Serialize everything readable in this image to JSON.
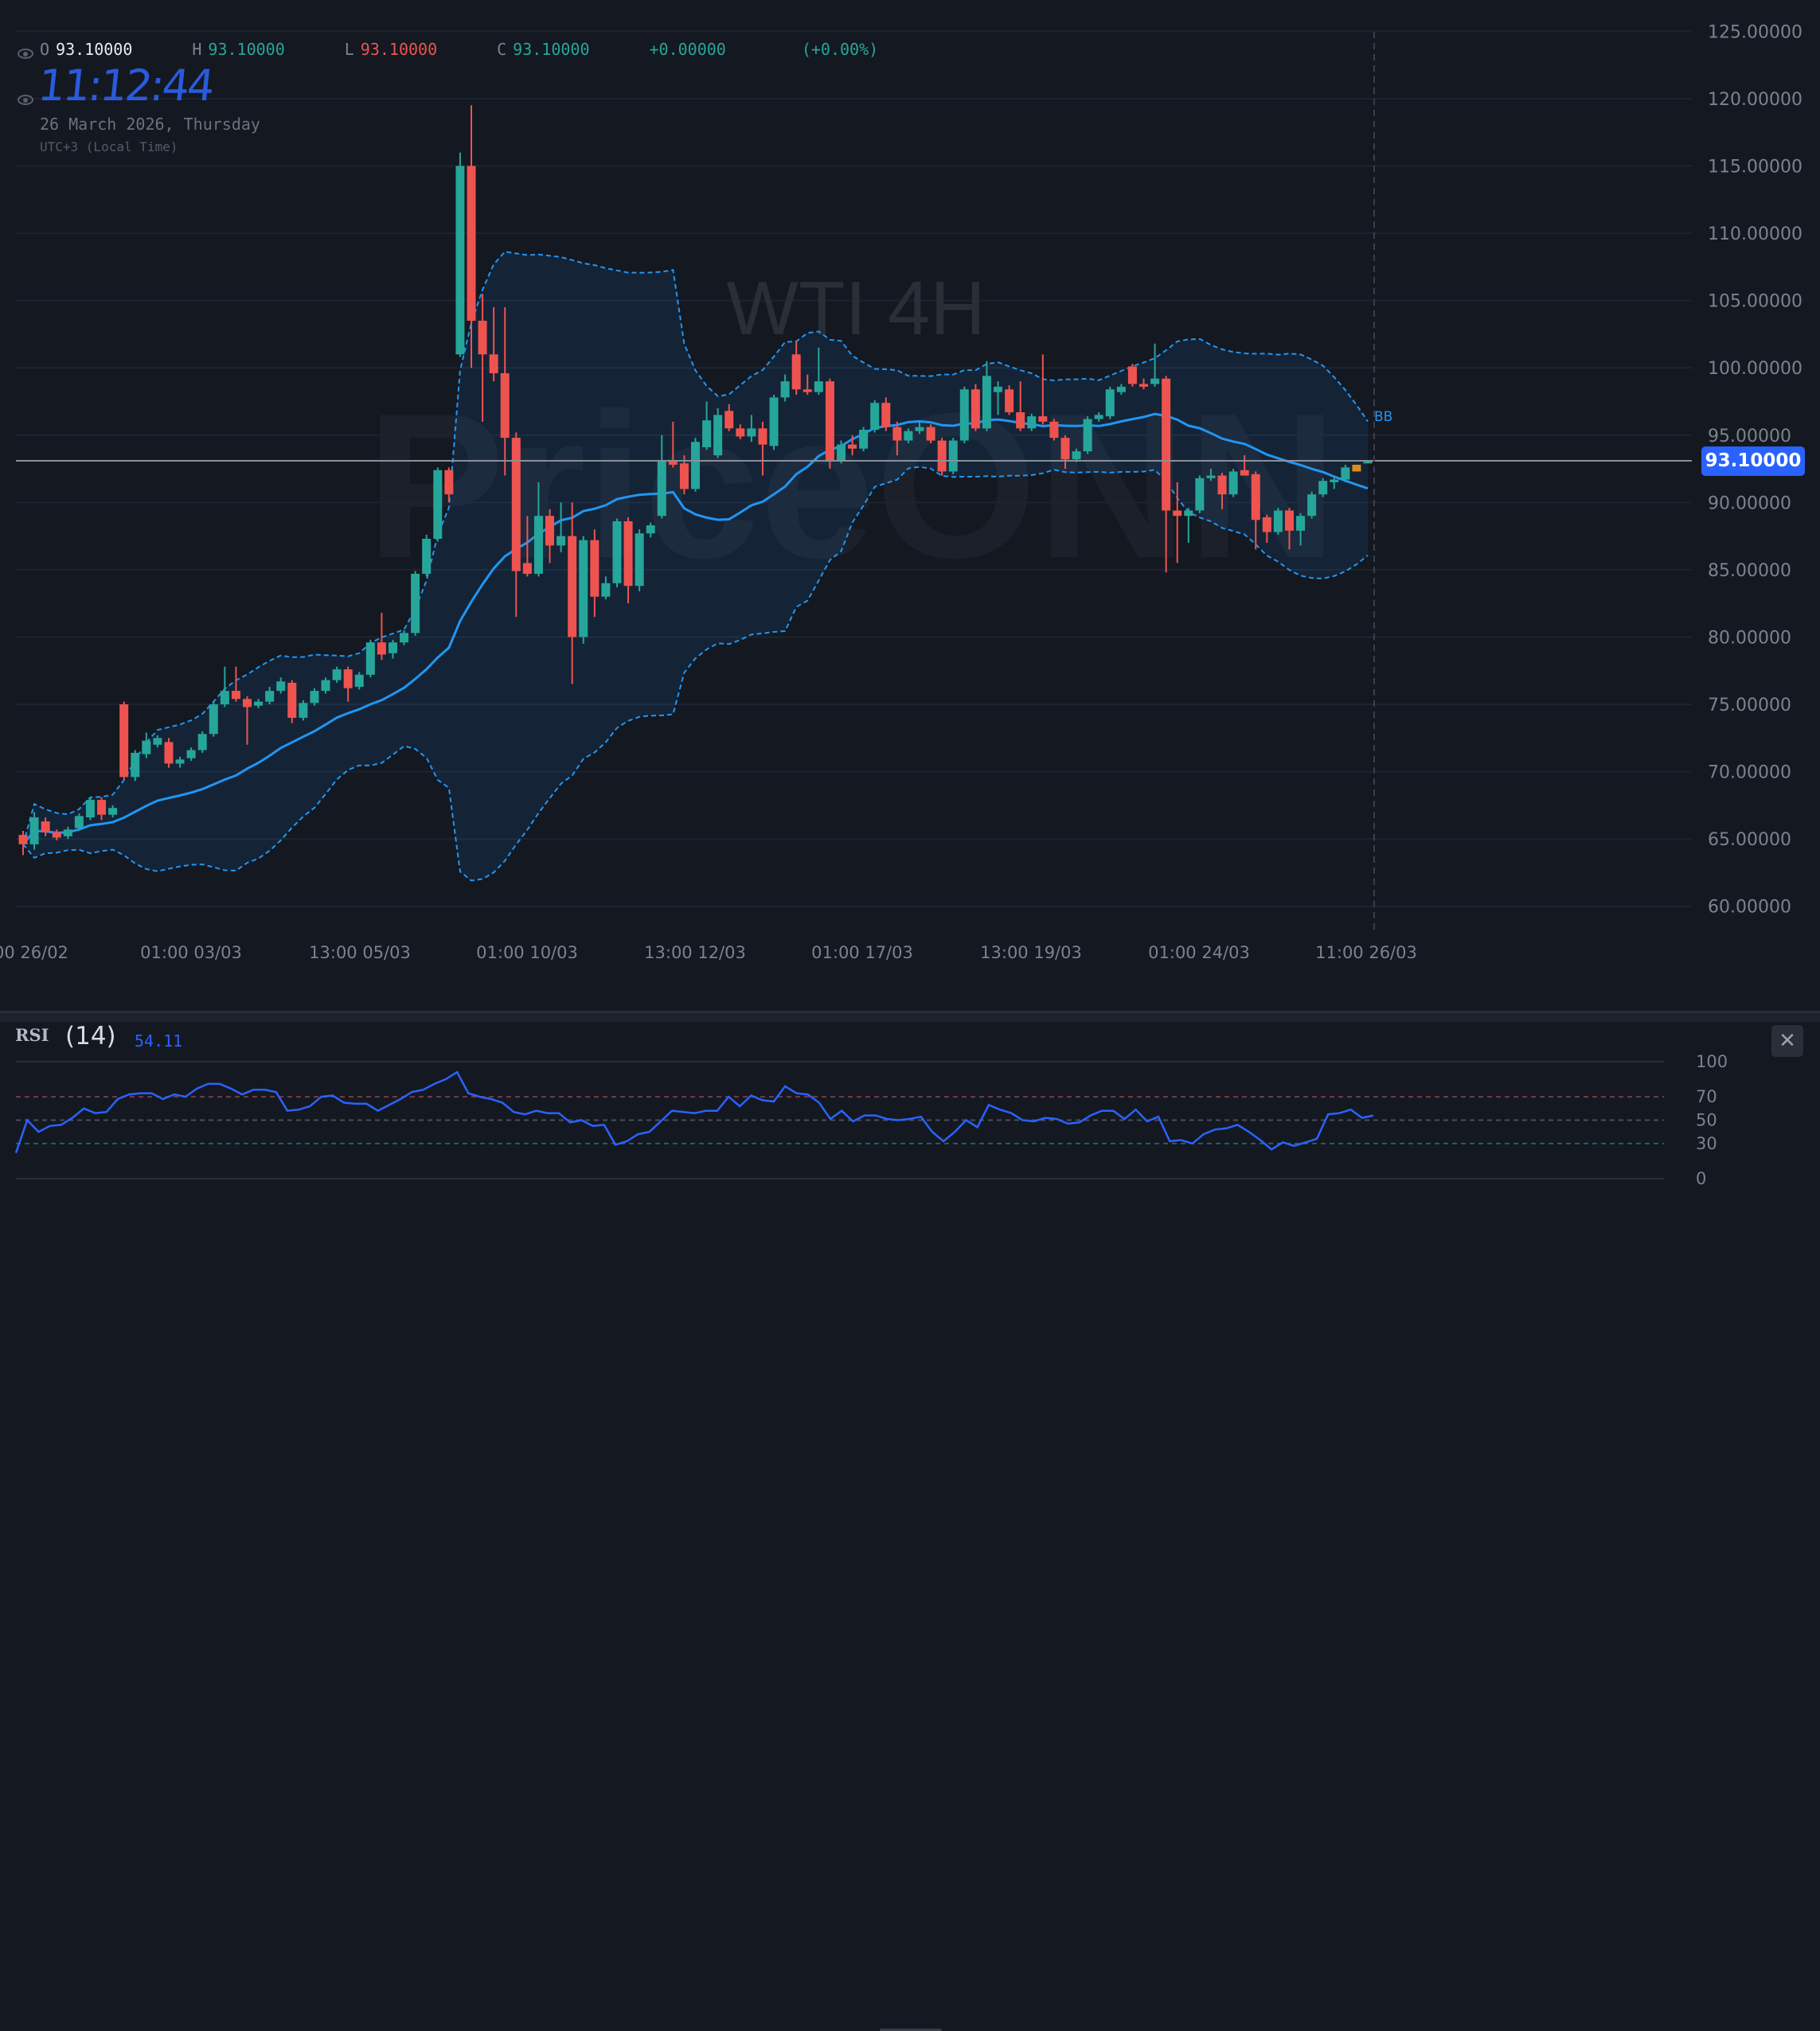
{
  "legend": {
    "open_label": "O",
    "open": "93.10000",
    "high_label": "H",
    "high": "93.10000",
    "low_label": "L",
    "low": "93.10000",
    "close_label": "C",
    "close": "93.10000",
    "change": "+0.00000",
    "change_pct": "(+0.00%)"
  },
  "clock": "11:12:44",
  "date": "26 March 2026, Thursday",
  "timezone": "UTC+3 (Local Time)",
  "watermark": {
    "symbol": "WTI 4H",
    "brand": "PriceONN"
  },
  "indicator_label": "BB",
  "current_price": "93.10000",
  "colors": {
    "up": "#26a69a",
    "down": "#ef5350",
    "bb": "#2196f3",
    "accent": "#2962ff",
    "highlight": "#e08a1e",
    "rsi": "#2a62ff"
  },
  "rsi": {
    "title": "RSI",
    "period": "(14)",
    "value": "54.11",
    "close_icon": "close-icon",
    "levels": [
      "100",
      "70",
      "50",
      "30",
      "0"
    ]
  },
  "chart_data": {
    "type": "candlestick",
    "ylim": [
      60,
      125
    ],
    "y_ticks": [
      "125.00000",
      "120.00000",
      "115.00000",
      "110.00000",
      "105.00000",
      "100.00000",
      "95.00000",
      "90.00000",
      "85.00000",
      "80.00000",
      "75.00000",
      "70.00000",
      "65.00000",
      "60.00000"
    ],
    "x_ticks": [
      "00 26/02",
      "01:00 03/03",
      "13:00 05/03",
      "01:00 10/03",
      "13:00 12/03",
      "01:00 17/03",
      "13:00 19/03",
      "01:00 24/03",
      "11:00 26/03"
    ],
    "grid": true,
    "ohlc": [
      [
        65.3,
        65.6,
        63.8,
        64.6
      ],
      [
        64.6,
        67,
        64.2,
        66.6
      ],
      [
        66.3,
        66.6,
        65.2,
        65.5
      ],
      [
        65.5,
        65.7,
        64.9,
        65.1
      ],
      [
        65.2,
        65.9,
        65,
        65.7
      ],
      [
        65.8,
        66.9,
        65.6,
        66.7
      ],
      [
        66.6,
        68.1,
        66.4,
        67.9
      ],
      [
        67.9,
        68.1,
        66.4,
        66.8
      ],
      [
        66.8,
        67.5,
        66.6,
        67.3
      ],
      [
        75,
        75.2,
        69.4,
        69.6
      ],
      [
        69.6,
        71.6,
        69.3,
        71.4
      ],
      [
        71.3,
        72.9,
        71,
        72.3
      ],
      [
        72,
        72.7,
        71.8,
        72.5
      ],
      [
        72.2,
        72.5,
        70.3,
        70.6
      ],
      [
        70.6,
        71.1,
        70.3,
        70.9
      ],
      [
        71,
        71.8,
        70.8,
        71.6
      ],
      [
        71.6,
        73,
        71.4,
        72.8
      ],
      [
        72.8,
        75.2,
        72.6,
        75
      ],
      [
        75,
        77.8,
        74.8,
        76
      ],
      [
        76,
        77.8,
        75.2,
        75.4
      ],
      [
        75.4,
        75.6,
        72,
        74.8
      ],
      [
        74.9,
        75.4,
        74.7,
        75.2
      ],
      [
        75.2,
        76.3,
        75,
        76
      ],
      [
        76,
        77,
        75.8,
        76.7
      ],
      [
        76.6,
        76.8,
        73.6,
        74
      ],
      [
        74,
        75.3,
        73.8,
        75.1
      ],
      [
        75.1,
        76.2,
        74.9,
        76
      ],
      [
        76,
        77,
        75.8,
        76.8
      ],
      [
        76.8,
        77.8,
        76.6,
        77.6
      ],
      [
        77.6,
        77.8,
        75.2,
        76.2
      ],
      [
        76.3,
        77.4,
        76.1,
        77.2
      ],
      [
        77.2,
        79.8,
        77,
        79.6
      ],
      [
        79.6,
        81.8,
        78.3,
        78.7
      ],
      [
        78.8,
        79.8,
        78.4,
        79.6
      ],
      [
        79.6,
        80.5,
        79.4,
        80.3
      ],
      [
        80.3,
        84.9,
        80.1,
        84.7
      ],
      [
        84.7,
        87.6,
        84.5,
        87.3
      ],
      [
        87.3,
        92.6,
        87.1,
        92.4
      ],
      [
        92.4,
        92.6,
        90,
        90.6
      ],
      [
        101,
        116,
        100.8,
        115
      ],
      [
        115,
        119.5,
        100,
        103.5
      ],
      [
        103.5,
        105.5,
        96,
        101
      ],
      [
        101,
        104.5,
        99,
        99.6
      ],
      [
        99.6,
        104.5,
        92,
        94.8
      ],
      [
        94.8,
        95.2,
        81.5,
        84.9
      ],
      [
        85.5,
        89,
        84.5,
        84.7
      ],
      [
        84.7,
        91.5,
        84.5,
        89
      ],
      [
        89,
        89.5,
        85.5,
        86.8
      ],
      [
        86.8,
        90,
        86.3,
        87.5
      ],
      [
        87.5,
        90,
        76.5,
        80
      ],
      [
        80,
        87.5,
        79.5,
        87.2
      ],
      [
        87.2,
        88,
        81.5,
        83
      ],
      [
        83,
        84.5,
        82.8,
        84
      ],
      [
        84,
        88.8,
        83.7,
        88.6
      ],
      [
        88.6,
        88.9,
        82.5,
        83.8
      ],
      [
        83.8,
        88,
        83.4,
        87.7
      ],
      [
        87.7,
        88.5,
        87.4,
        88.3
      ],
      [
        89,
        95,
        88.8,
        93.1
      ],
      [
        93.1,
        96,
        92.6,
        92.8
      ],
      [
        92.9,
        93.5,
        90.6,
        91
      ],
      [
        91,
        94.8,
        90.8,
        94.5
      ],
      [
        94.1,
        97.5,
        93.9,
        96.1
      ],
      [
        93.5,
        97,
        93.3,
        96.5
      ],
      [
        96.8,
        97.3,
        95.3,
        95.5
      ],
      [
        95.5,
        95.8,
        94.7,
        94.9
      ],
      [
        94.9,
        96.5,
        94.5,
        95.5
      ],
      [
        95.5,
        96,
        92,
        94.3
      ],
      [
        94.2,
        98,
        93.9,
        97.8
      ],
      [
        97.8,
        99.5,
        97.5,
        99
      ],
      [
        101,
        102,
        98,
        98.4
      ],
      [
        98.4,
        99.5,
        98,
        98.2
      ],
      [
        98.2,
        101.5,
        98,
        99
      ],
      [
        99,
        99.2,
        92.5,
        93.1
      ],
      [
        93.1,
        94.6,
        92.9,
        94.3
      ],
      [
        94.3,
        95,
        93.5,
        94
      ],
      [
        94,
        95.6,
        93.8,
        95.4
      ],
      [
        95.4,
        97.6,
        95.2,
        97.4
      ],
      [
        97.4,
        97.8,
        95.3,
        95.6
      ],
      [
        95.6,
        96,
        93.5,
        94.6
      ],
      [
        94.6,
        95.5,
        94.4,
        95.3
      ],
      [
        95.3,
        96,
        95.1,
        95.6
      ],
      [
        95.6,
        95.8,
        94.4,
        94.6
      ],
      [
        94.6,
        94.8,
        92,
        92.3
      ],
      [
        92.3,
        94.8,
        92.1,
        94.6
      ],
      [
        94.6,
        98.6,
        94.4,
        98.4
      ],
      [
        98.4,
        98.8,
        95.3,
        95.5
      ],
      [
        95.5,
        100.5,
        95.3,
        99.4
      ],
      [
        98.2,
        99,
        96.5,
        98.6
      ],
      [
        98.4,
        98.7,
        96.5,
        96.7
      ],
      [
        96.7,
        99,
        95.3,
        95.5
      ],
      [
        95.5,
        96.6,
        95.3,
        96.4
      ],
      [
        96.4,
        101,
        95.8,
        96
      ],
      [
        96,
        96.2,
        94.6,
        94.8
      ],
      [
        94.8,
        95,
        92.5,
        93.2
      ],
      [
        93.2,
        94,
        93,
        93.8
      ],
      [
        93.8,
        96.4,
        93.6,
        96.2
      ],
      [
        96.2,
        96.7,
        96,
        96.5
      ],
      [
        96.4,
        98.6,
        96.2,
        98.4
      ],
      [
        98.2,
        98.8,
        98,
        98.6
      ],
      [
        100.1,
        100.3,
        98.6,
        98.8
      ],
      [
        98.8,
        99.2,
        98.4,
        98.6
      ],
      [
        98.8,
        101.8,
        98.6,
        99.2
      ],
      [
        99.2,
        99.4,
        84.8,
        89.4
      ],
      [
        89.4,
        91.5,
        85.5,
        89
      ],
      [
        89,
        89.6,
        87,
        89.4
      ],
      [
        89.4,
        92,
        89.2,
        91.8
      ],
      [
        91.8,
        92.5,
        91.6,
        92
      ],
      [
        92,
        92.2,
        89.5,
        90.6
      ],
      [
        90.6,
        92.5,
        90.4,
        92.3
      ],
      [
        92.4,
        93.5,
        92,
        92
      ],
      [
        92.1,
        92.3,
        86.5,
        88.7
      ],
      [
        88.9,
        89.1,
        87,
        87.8
      ],
      [
        87.8,
        89.6,
        87.6,
        89.4
      ],
      [
        89.4,
        89.6,
        86.5,
        87.9
      ],
      [
        87.9,
        89.2,
        86.8,
        89
      ],
      [
        89,
        90.8,
        88.8,
        90.6
      ],
      [
        90.6,
        91.8,
        90.4,
        91.6
      ],
      [
        91.5,
        92,
        91,
        91.7
      ],
      [
        91.7,
        92.8,
        91.5,
        92.6
      ],
      [
        92.3,
        92.8,
        92.3,
        92.8
      ],
      [
        92.9,
        93.1,
        92.9,
        93.1
      ]
    ],
    "highlight_candle": 119,
    "bollinger": {
      "period": 20,
      "stddev": 2
    },
    "rsi_series": [
      22,
      50,
      40,
      45,
      46,
      52,
      60,
      56,
      57,
      68,
      72,
      73,
      73,
      68,
      72,
      70,
      77,
      81,
      81,
      77,
      72,
      76,
      76,
      74,
      58,
      59,
      62,
      70,
      71,
      65,
      64,
      64,
      58,
      63,
      68,
      74,
      76,
      81,
      85,
      91,
      73,
      70,
      68,
      65,
      57,
      55,
      58,
      56,
      56,
      48,
      50,
      45,
      46,
      29,
      32,
      38,
      40,
      49,
      58,
      57,
      56,
      58,
      58,
      70,
      62,
      71,
      67,
      66,
      79,
      73,
      72,
      65,
      51,
      58,
      49,
      54,
      54,
      51,
      50,
      51,
      53,
      40,
      32,
      40,
      50,
      44,
      63,
      59,
      56,
      50,
      49,
      52,
      51,
      47,
      48,
      54,
      58,
      58,
      51,
      59,
      49,
      53,
      32,
      33,
      30,
      38,
      42,
      43,
      46,
      40,
      33,
      25,
      31,
      28,
      31,
      34,
      55,
      56,
      59,
      52,
      54
    ],
    "rsi_ylim": [
      0,
      100
    ]
  }
}
